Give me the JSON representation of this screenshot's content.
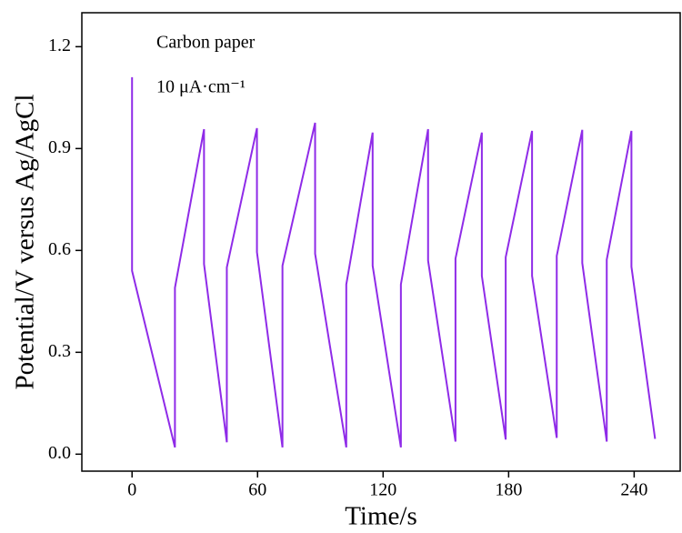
{
  "chart_data": {
    "type": "line",
    "xlabel": "Time/s",
    "ylabel": "Potential/V versus Ag/AgCl",
    "annotations": [
      "Carbon paper",
      "10 μA·cm⁻¹"
    ],
    "x": [
      0,
      0,
      20.5,
      20.5,
      34.4,
      34.4,
      45.3,
      45.3,
      59.7,
      59.7,
      71.9,
      71.9,
      87.5,
      87.5,
      102.4,
      102.4,
      115,
      115,
      128.5,
      128.5,
      141.5,
      141.5,
      154.6,
      154.6,
      167.2,
      167.2,
      178.6,
      178.6,
      191.2,
      191.2,
      203,
      203,
      215.2,
      215.2,
      226.9,
      226.9,
      238.7,
      238.7,
      250
    ],
    "values": [
      1.11,
      0.54,
      0.02,
      0.49,
      0.957,
      0.56,
      0.035,
      0.55,
      0.96,
      0.595,
      0.02,
      0.555,
      0.976,
      0.59,
      0.02,
      0.5,
      0.947,
      0.555,
      0.02,
      0.5,
      0.957,
      0.57,
      0.037,
      0.576,
      0.947,
      0.525,
      0.043,
      0.58,
      0.952,
      0.525,
      0.048,
      0.584,
      0.955,
      0.563,
      0.037,
      0.573,
      0.952,
      0.552,
      0.045
    ],
    "color": "#8f2be8",
    "xlim": [
      -24,
      262
    ],
    "xticks": [
      0,
      60,
      120,
      180,
      240
    ],
    "ylim": [
      -0.05,
      1.3
    ],
    "yticks": [
      {
        "value": 0,
        "label": "0.0"
      },
      0.3,
      0.6,
      0.9,
      1.2
    ]
  }
}
